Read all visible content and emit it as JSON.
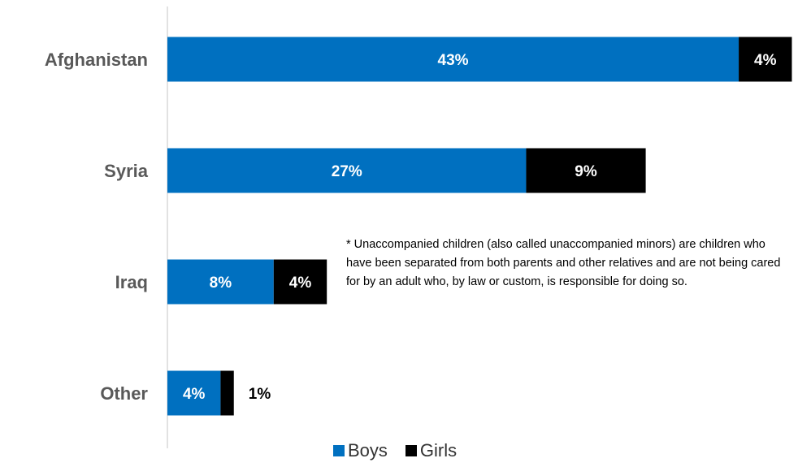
{
  "chart_data": {
    "type": "bar",
    "orientation": "horizontal",
    "stacked": true,
    "categories": [
      "Afghanistan",
      "Syria",
      "Iraq",
      "Other"
    ],
    "series": [
      {
        "name": "Boys",
        "values": [
          43,
          27,
          8,
          4
        ],
        "labels": [
          "43%",
          "27%",
          "8%",
          "4%"
        ],
        "color": "#0070C0"
      },
      {
        "name": "Girls",
        "values": [
          4,
          9,
          4,
          1
        ],
        "labels": [
          "4%",
          "9%",
          "4%",
          "1%"
        ],
        "color": "#000000"
      }
    ],
    "xlim": [
      0,
      50
    ],
    "grid": false,
    "legend_position": "bottom"
  },
  "note": "* Unaccompanied children (also called unaccompanied minors) are children who have been separated from both parents and other relatives and are not being cared for by an adult who, by law or custom, is responsible for doing so."
}
